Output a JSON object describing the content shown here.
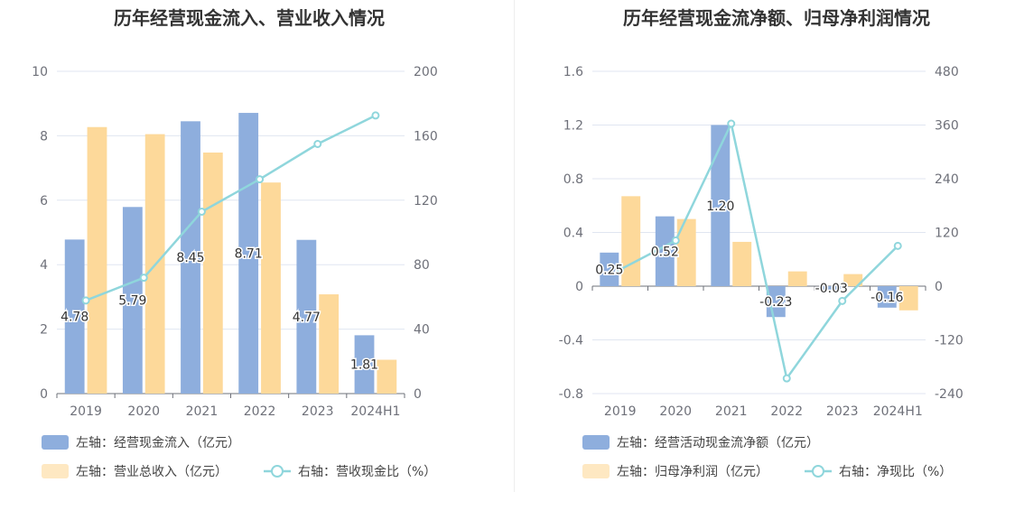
{
  "chart_data": [
    {
      "type": "bar",
      "title": "历年经营现金流入、营业收入情况",
      "categories": [
        "2019",
        "2020",
        "2021",
        "2022",
        "2023",
        "2024H1"
      ],
      "left_axis": {
        "ylim": [
          0,
          10
        ],
        "ticks": [
          "0",
          "2",
          "4",
          "6",
          "8",
          "10"
        ]
      },
      "right_axis": {
        "ylim": [
          0,
          200
        ],
        "ticks": [
          "0",
          "40",
          "80",
          "120",
          "160",
          "200"
        ]
      },
      "grid": true,
      "series": [
        {
          "name": "左轴：经营现金流入（亿元）",
          "type": "bar",
          "axis": "left",
          "color": "#8eaedd",
          "values": [
            4.78,
            5.79,
            8.45,
            8.71,
            4.77,
            1.81
          ],
          "labels": [
            "4.78",
            "5.79",
            "8.45",
            "8.71",
            "4.77",
            "1.81"
          ]
        },
        {
          "name": "左轴：营业总收入（亿元）",
          "type": "bar",
          "axis": "left",
          "color": "#fdd99a",
          "values": [
            8.27,
            8.05,
            7.48,
            6.55,
            3.08,
            1.05
          ]
        },
        {
          "name": "右轴：营收现金比（%）",
          "type": "line",
          "axis": "right",
          "color": "#8fd6dc",
          "values": [
            57.8,
            71.9,
            112.9,
            133.0,
            154.9,
            172.6
          ]
        }
      ],
      "legend_position": "bottom-left"
    },
    {
      "type": "bar",
      "title": "历年经营现金流净额、归母净利润情况",
      "categories": [
        "2019",
        "2020",
        "2021",
        "2022",
        "2023",
        "2024H1"
      ],
      "left_axis": {
        "ylim": [
          -0.8,
          1.6
        ],
        "ticks": [
          "-0.8",
          "-0.4",
          "0",
          "0.4",
          "0.8",
          "1.2",
          "1.6"
        ]
      },
      "right_axis": {
        "ylim": [
          -240,
          480
        ],
        "ticks": [
          "-240",
          "-120",
          "0",
          "120",
          "240",
          "360",
          "480"
        ]
      },
      "grid": true,
      "series": [
        {
          "name": "左轴：经营活动现金流净额（亿元）",
          "type": "bar",
          "axis": "left",
          "color": "#8eaedd",
          "values": [
            0.25,
            0.52,
            1.2,
            -0.23,
            -0.03,
            -0.16
          ],
          "labels": [
            "0.25",
            "0.52",
            "1.20",
            "-0.23",
            "-0.03",
            "-0.16"
          ]
        },
        {
          "name": "左轴：归母净利润（亿元）",
          "type": "bar",
          "axis": "left",
          "color": "#fdd99a",
          "values": [
            0.67,
            0.5,
            0.33,
            0.11,
            0.09,
            -0.18
          ]
        },
        {
          "name": "右轴：净现比（%）",
          "type": "line",
          "axis": "right",
          "color": "#8fd6dc",
          "values": [
            37,
            102,
            363,
            -206,
            -33,
            90
          ]
        }
      ],
      "legend_position": "bottom-left"
    }
  ]
}
